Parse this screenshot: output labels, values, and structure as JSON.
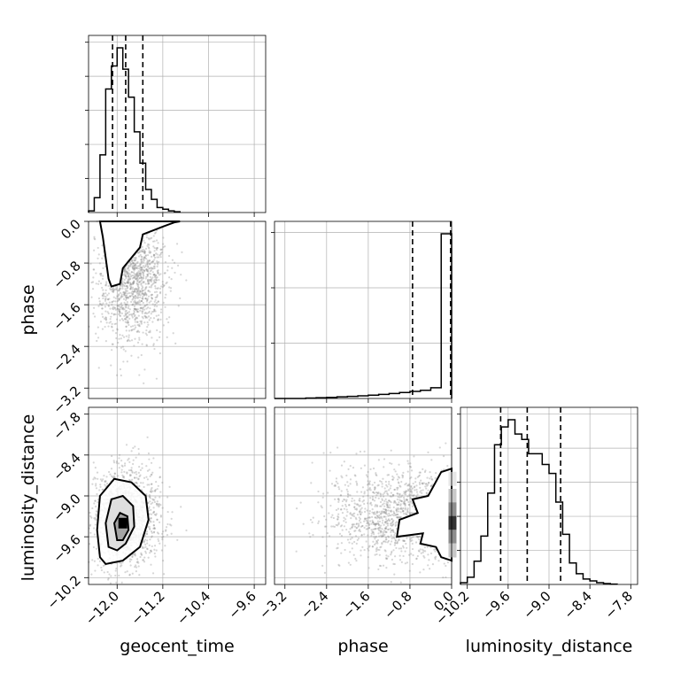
{
  "chart_data": {
    "type": "corner",
    "parameters": [
      "geocent_time",
      "phase",
      "luminosity_distance"
    ],
    "axis_labels": {
      "geocent_time": "geocent_time",
      "phase": "phase",
      "luminosity_distance": "luminosity_distance"
    },
    "ticks": {
      "geocent_time": [
        "−12.0",
        "−11.2",
        "−10.4",
        "−9.6"
      ],
      "phase": [
        "0.0",
        "−0.8",
        "−1.6",
        "−2.4",
        "−3.2"
      ],
      "phase_x": [
        "−3.2",
        "−2.4",
        "−1.6",
        "−0.8",
        "0.0"
      ],
      "luminosity_distance_y": [
        "−7.8",
        "−8.4",
        "−9.0",
        "−9.6",
        "−10.2"
      ],
      "luminosity_distance_x": [
        "−10.2",
        "−9.6",
        "−9.0",
        "−8.4",
        "−7.8"
      ]
    },
    "ranges": {
      "geocent_time": [
        -12.5,
        -9.4
      ],
      "phase": [
        -3.4,
        0.0
      ],
      "luminosity_distance": [
        -10.3,
        -7.7
      ]
    },
    "grid": true,
    "marginals": {
      "geocent_time": {
        "bin_edges": [
          -12.5,
          -12.4,
          -12.3,
          -12.2,
          -12.1,
          -12.0,
          -11.9,
          -11.8,
          -11.7,
          -11.6,
          -11.5,
          -11.4,
          -11.3,
          -11.2,
          -11.1,
          -11.0,
          -10.9
        ],
        "counts": [
          1,
          9,
          35,
          75,
          89,
          100,
          87,
          70,
          49,
          30,
          14,
          8,
          3,
          2,
          1,
          0.5
        ],
        "quantiles": [
          -12.08,
          -11.85,
          -11.55
        ]
      },
      "phase": {
        "bin_edges": [
          -3.4,
          -3.2,
          -3.0,
          -2.8,
          -2.6,
          -2.4,
          -2.2,
          -2.0,
          -1.8,
          -1.6,
          -1.4,
          -1.2,
          -1.0,
          -0.8,
          -0.6,
          -0.4,
          -0.2,
          0.0
        ],
        "counts": [
          0,
          0,
          0,
          0.3,
          0.5,
          0.7,
          1,
          1.3,
          1.6,
          2,
          2.5,
          3,
          3.6,
          4.3,
          5,
          6.5,
          100
        ],
        "quantiles": [
          -0.75,
          -0.02
        ]
      },
      "luminosity_distance": {
        "bin_edges": [
          -10.3,
          -10.2,
          -10.1,
          -10.0,
          -9.9,
          -9.8,
          -9.7,
          -9.6,
          -9.5,
          -9.4,
          -9.3,
          -9.2,
          -9.1,
          -9.0,
          -8.9,
          -8.8,
          -8.7,
          -8.6,
          -8.5,
          -8.4,
          -8.3,
          -8.2,
          -8.1,
          -8.0
        ],
        "counts": [
          1,
          4,
          13,
          27,
          51,
          78,
          88,
          92,
          84,
          81,
          73,
          73,
          67,
          62,
          46,
          28,
          12,
          6,
          3,
          2,
          1,
          0.5,
          0.2
        ],
        "quantiles": [
          -9.71,
          -9.32,
          -8.83
        ]
      }
    },
    "joint": {
      "geocent_time_vs_phase": {
        "x": "geocent_time",
        "y": "phase",
        "center": [
          -11.85,
          -0.05
        ],
        "cluster": {
          "x_mean": -11.75,
          "x_sd": 0.3,
          "y_mean": -1.1,
          "y_sd": 0.6
        },
        "contour": [
          [
            -12.3,
            0.0
          ],
          [
            -12.25,
            -0.3
          ],
          [
            -12.2,
            -0.7
          ],
          [
            -12.15,
            -1.1
          ],
          [
            -12.1,
            -1.25
          ],
          [
            -11.95,
            -1.2
          ],
          [
            -11.9,
            -0.9
          ],
          [
            -11.75,
            -0.7
          ],
          [
            -11.6,
            -0.5
          ],
          [
            -11.55,
            -0.25
          ],
          [
            -11.2,
            -0.1
          ],
          [
            -11.0,
            -0.02
          ],
          [
            -10.9,
            0.0
          ]
        ]
      },
      "geocent_time_vs_luminosity_distance": {
        "x": "geocent_time",
        "y": "luminosity_distance",
        "center": [
          -11.9,
          -9.4
        ],
        "cluster": {
          "x_mean": -11.85,
          "x_sd": 0.3,
          "y_mean": -9.3,
          "y_sd": 0.35
        },
        "contours": [
          [
            [
              -12.3,
              -9.9
            ],
            [
              -12.35,
              -9.5
            ],
            [
              -12.3,
              -9.0
            ],
            [
              -12.05,
              -8.75
            ],
            [
              -11.75,
              -8.8
            ],
            [
              -11.5,
              -9.0
            ],
            [
              -11.45,
              -9.35
            ],
            [
              -11.6,
              -9.75
            ],
            [
              -11.9,
              -9.95
            ],
            [
              -12.2,
              -10.0
            ]
          ],
          [
            [
              -12.15,
              -9.75
            ],
            [
              -12.2,
              -9.4
            ],
            [
              -12.1,
              -9.05
            ],
            [
              -11.9,
              -9.0
            ],
            [
              -11.72,
              -9.15
            ],
            [
              -11.7,
              -9.45
            ],
            [
              -11.85,
              -9.7
            ],
            [
              -12.0,
              -9.8
            ]
          ],
          [
            [
              -12.0,
              -9.65
            ],
            [
              -12.05,
              -9.4
            ],
            [
              -11.95,
              -9.25
            ],
            [
              -11.82,
              -9.3
            ],
            [
              -11.8,
              -9.5
            ],
            [
              -11.9,
              -9.65
            ]
          ]
        ]
      },
      "phase_vs_luminosity_distance": {
        "x": "phase",
        "y": "luminosity_distance",
        "center": [
          -0.05,
          -9.4
        ],
        "cluster": {
          "x_mean": -1.2,
          "x_sd": 0.7,
          "y_mean": -9.3,
          "y_sd": 0.35
        },
        "contour": [
          [
            0.0,
            -8.6
          ],
          [
            -0.2,
            -8.65
          ],
          [
            -0.45,
            -9.0
          ],
          [
            -0.75,
            -9.05
          ],
          [
            -0.65,
            -9.25
          ],
          [
            -1.0,
            -9.35
          ],
          [
            -1.05,
            -9.6
          ],
          [
            -0.55,
            -9.55
          ],
          [
            -0.6,
            -9.7
          ],
          [
            -0.3,
            -9.75
          ],
          [
            -0.2,
            -9.9
          ],
          [
            0.0,
            -9.95
          ]
        ]
      }
    },
    "colors": {
      "line": "#000000",
      "scatter": "#8a8a8a",
      "grid": "#b0b0b0",
      "frame": "#000000"
    }
  }
}
